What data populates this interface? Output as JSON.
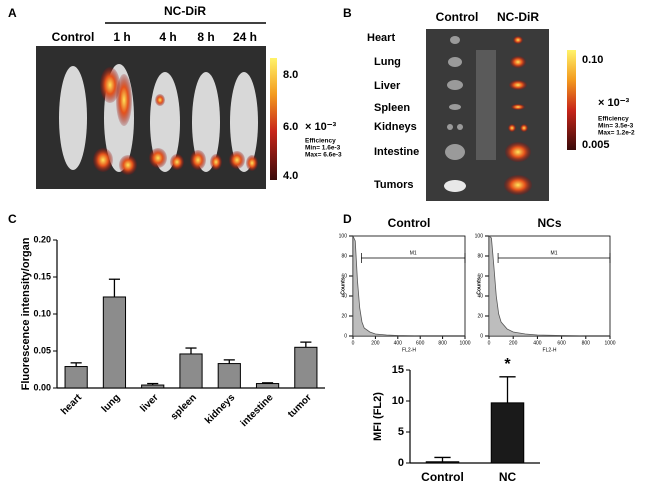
{
  "panel_labels": [
    "A",
    "B",
    "C",
    "D"
  ],
  "panel_a": {
    "group_label": "NC-DiR",
    "columns": [
      "Control",
      "1 h",
      "4 h",
      "8 h",
      "24 h"
    ],
    "colorbar_labels": [
      "8.0",
      "6.0",
      "4.0"
    ],
    "scale": "× 10⁻³",
    "efficiency": [
      "Efficiency",
      "Min= 1.6e-3",
      "Max= 6.6e-3"
    ]
  },
  "panel_b": {
    "columns": [
      "Control",
      "NC-DiR"
    ],
    "organs": [
      "Heart",
      "Lung",
      "Liver",
      "Spleen",
      "Kidneys",
      "Intestine",
      "Tumors"
    ],
    "colorbar_labels": [
      "0.10",
      "0.005"
    ],
    "scale": "× 10⁻³",
    "efficiency": [
      "Efficiency",
      "Min= 3.5e-3",
      "Max= 1.2e-2"
    ]
  },
  "chart_data": [
    {
      "type": "bar",
      "y_label": "Fluorescence intensity/organ",
      "categories": [
        "heart",
        "lung",
        "liver",
        "spleen",
        "kidneys",
        "intestine",
        "tumor"
      ],
      "values": [
        0.029,
        0.123,
        0.004,
        0.046,
        0.033,
        0.006,
        0.055
      ],
      "errors": [
        0.005,
        0.024,
        0.002,
        0.008,
        0.005,
        0.001,
        0.007
      ],
      "color": "#8c8c8c",
      "ylim": [
        0,
        0.2
      ],
      "yticks": [
        {
          "value": 0,
          "label": "0.00"
        },
        {
          "value": 0.05,
          "label": "0.05"
        },
        {
          "value": 0.1,
          "label": "0.10"
        },
        {
          "value": 0.15,
          "label": "0.15"
        },
        {
          "value": 0.2,
          "label": "0.20"
        }
      ]
    },
    {
      "type": "histogram",
      "title": "Control",
      "x_label": "FL2-H",
      "y_label": "Counts",
      "x": [
        0,
        20,
        40,
        60,
        80,
        100,
        150,
        200,
        300,
        400,
        600,
        800,
        1000
      ],
      "values": [
        100,
        95,
        55,
        28,
        14,
        8,
        4,
        2,
        1,
        0.5,
        0,
        0,
        0
      ],
      "color": "#555555",
      "gate": [
        75,
        1000
      ],
      "gate_label": "M1",
      "xlim": [
        0,
        1000
      ],
      "ylim": [
        0,
        100
      ],
      "xticks": [
        0,
        200,
        400,
        600,
        800,
        1000
      ],
      "yticks": [
        0,
        20,
        40,
        60,
        80,
        100
      ]
    },
    {
      "type": "histogram",
      "title": "NCs",
      "x_label": "FL2-H",
      "y_label": "Counts",
      "x": [
        0,
        20,
        40,
        60,
        80,
        100,
        150,
        200,
        300,
        400,
        600,
        800,
        1000
      ],
      "values": [
        100,
        98,
        70,
        40,
        22,
        14,
        7,
        4,
        2,
        1,
        0.5,
        0,
        0
      ],
      "color": "#555555",
      "gate": [
        75,
        1000
      ],
      "gate_label": "M1",
      "xlim": [
        0,
        1000
      ],
      "ylim": [
        0,
        100
      ],
      "xticks": [
        0,
        200,
        400,
        600,
        800,
        1000
      ],
      "yticks": [
        0,
        20,
        40,
        60,
        80,
        100
      ]
    },
    {
      "type": "bar",
      "y_label": "MFI (FL2)",
      "categories": [
        "Control",
        "NC"
      ],
      "values": [
        0.2,
        9.7
      ],
      "errors": [
        0.7,
        4.2
      ],
      "color": "#1a1a1a",
      "annotation": "*",
      "ylim": [
        0,
        15
      ],
      "yticks": [
        0,
        5,
        10,
        15
      ]
    }
  ]
}
